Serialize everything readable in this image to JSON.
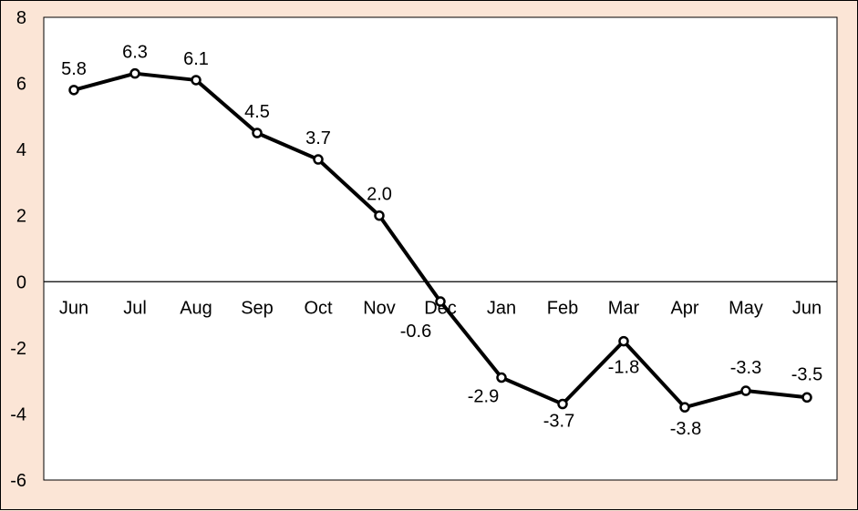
{
  "chart_data": {
    "type": "line",
    "title": "",
    "xlabel": "",
    "ylabel": "",
    "categories": [
      "Jun",
      "Jul",
      "Aug",
      "Sep",
      "Oct",
      "Nov",
      "Dec",
      "Jan",
      "Feb",
      "Mar",
      "Apr",
      "May",
      "Jun"
    ],
    "series": [
      {
        "values": [
          5.8,
          6.3,
          6.1,
          4.5,
          3.7,
          2.0,
          -0.6,
          -2.9,
          -3.7,
          -1.8,
          -3.8,
          -3.3,
          -3.5
        ],
        "labels": [
          "5.8",
          "6.3",
          "6.1",
          "4.5",
          "3.7",
          "2.0",
          "-0.6",
          "-2.9",
          "-3.7",
          "-1.8",
          "-3.8",
          "-3.3",
          "-3.5"
        ]
      }
    ],
    "ylim": [
      -6,
      8
    ],
    "yticks": [
      -6,
      -4,
      -2,
      0,
      2,
      4,
      6,
      8
    ],
    "ytick_labels": [
      "-6",
      "-4",
      "-2",
      "0",
      "2",
      "4",
      "6",
      "8"
    ],
    "grid": false,
    "legend": "none",
    "colors": {
      "background": "#fbe5d6",
      "plot_background": "#ffffff",
      "line": "#000000",
      "marker_fill": "#ffffff"
    }
  }
}
